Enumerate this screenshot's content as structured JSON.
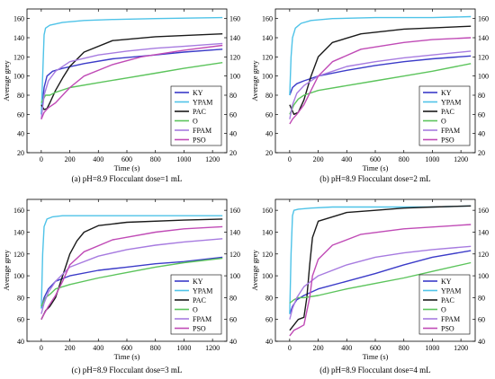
{
  "legend_labels": [
    "KY",
    "YPAM",
    "PAC",
    "O",
    "FPAM",
    "PSO"
  ],
  "colors": {
    "KY": "#3b3bc8",
    "YPAM": "#4fc3e8",
    "PAC": "#1a1a1a",
    "O": "#5cc45c",
    "FPAM": "#a77be0",
    "PSO": "#c04bb6",
    "PSO_early": "#e05a2a"
  },
  "chart_data": [
    {
      "type": "line",
      "caption": "(a) pH=8.9  Flocculant dose=1 mL",
      "xlabel": "Time (s)",
      "ylabel": "Average grey",
      "xlim": [
        -100,
        1300
      ],
      "ylim": [
        20,
        170
      ],
      "xticks": [
        0,
        200,
        400,
        600,
        800,
        1000,
        1200
      ],
      "yticks": [
        20,
        40,
        60,
        80,
        100,
        120,
        140,
        160
      ],
      "legend_position": "lower-right",
      "series": [
        {
          "name": "KY",
          "x": [
            0,
            20,
            40,
            80,
            150,
            300,
            500,
            800,
            1000,
            1270
          ],
          "y": [
            60,
            88,
            100,
            105,
            108,
            113,
            118,
            122,
            125,
            128
          ]
        },
        {
          "name": "YPAM",
          "x": [
            0,
            10,
            20,
            30,
            60,
            150,
            300,
            500,
            800,
            1270
          ],
          "y": [
            60,
            100,
            143,
            150,
            153,
            156,
            158,
            159,
            160,
            161
          ]
        },
        {
          "name": "PAC",
          "x": [
            0,
            20,
            40,
            60,
            100,
            150,
            200,
            300,
            500,
            800,
            1270
          ],
          "y": [
            70,
            65,
            66,
            72,
            85,
            98,
            110,
            125,
            137,
            141,
            144
          ]
        },
        {
          "name": "O",
          "x": [
            0,
            30,
            60,
            100,
            200,
            400,
            600,
            800,
            1000,
            1270
          ],
          "y": [
            72,
            80,
            80,
            83,
            88,
            93,
            98,
            103,
            108,
            114
          ]
        },
        {
          "name": "FPAM",
          "x": [
            0,
            20,
            50,
            100,
            200,
            400,
            600,
            800,
            1000,
            1270
          ],
          "y": [
            55,
            80,
            95,
            105,
            115,
            122,
            126,
            129,
            131,
            134
          ]
        },
        {
          "name": "PSO",
          "x": [
            0,
            20,
            50,
            100,
            150,
            200,
            300,
            500,
            700,
            1000,
            1270
          ],
          "y": [
            55,
            62,
            67,
            72,
            80,
            88,
            100,
            112,
            120,
            127,
            132
          ]
        }
      ]
    },
    {
      "type": "line",
      "caption": "(b) pH=8.9  Flocculant dose=2 mL",
      "xlabel": "Time (s)",
      "ylabel": "Average grey",
      "xlim": [
        -100,
        1300
      ],
      "ylim": [
        20,
        170
      ],
      "xticks": [
        0,
        200,
        400,
        600,
        800,
        1000,
        1200
      ],
      "yticks": [
        20,
        40,
        60,
        80,
        100,
        120,
        140,
        160
      ],
      "legend_position": "lower-right",
      "series": [
        {
          "name": "KY",
          "x": [
            0,
            20,
            50,
            100,
            200,
            400,
            600,
            800,
            1000,
            1270
          ],
          "y": [
            80,
            88,
            92,
            95,
            100,
            106,
            111,
            115,
            118,
            121
          ]
        },
        {
          "name": "YPAM",
          "x": [
            0,
            10,
            20,
            40,
            80,
            150,
            300,
            600,
            1000,
            1270
          ],
          "y": [
            80,
            120,
            140,
            150,
            155,
            158,
            160,
            161,
            161,
            162
          ]
        },
        {
          "name": "PAC",
          "x": [
            0,
            30,
            60,
            100,
            150,
            200,
            300,
            500,
            800,
            1270
          ],
          "y": [
            70,
            60,
            62,
            75,
            100,
            120,
            135,
            144,
            149,
            152
          ]
        },
        {
          "name": "O",
          "x": [
            0,
            30,
            60,
            100,
            200,
            400,
            600,
            800,
            1000,
            1270
          ],
          "y": [
            60,
            70,
            76,
            80,
            85,
            90,
            95,
            100,
            105,
            113
          ]
        },
        {
          "name": "FPAM",
          "x": [
            0,
            20,
            50,
            100,
            200,
            400,
            600,
            800,
            1000,
            1270
          ],
          "y": [
            55,
            70,
            82,
            90,
            100,
            110,
            115,
            119,
            122,
            126
          ]
        },
        {
          "name": "PSO",
          "x": [
            0,
            20,
            50,
            100,
            150,
            200,
            300,
            500,
            800,
            1000,
            1270
          ],
          "y": [
            50,
            55,
            60,
            70,
            85,
            100,
            115,
            128,
            135,
            138,
            140
          ]
        }
      ]
    },
    {
      "type": "line",
      "caption": "(c) pH=8.9  Flocculant dose=3 mL",
      "xlabel": "Time (s)",
      "ylabel": "Average grey",
      "xlim": [
        -100,
        1300
      ],
      "ylim": [
        40,
        170
      ],
      "xticks": [
        0,
        200,
        400,
        600,
        800,
        1000,
        1200
      ],
      "yticks": [
        40,
        60,
        80,
        100,
        120,
        140,
        160
      ],
      "legend_position": "lower-right",
      "series": [
        {
          "name": "KY",
          "x": [
            0,
            20,
            50,
            100,
            200,
            400,
            600,
            800,
            1000,
            1270
          ],
          "y": [
            70,
            80,
            88,
            95,
            100,
            105,
            108,
            111,
            113,
            117
          ]
        },
        {
          "name": "YPAM",
          "x": [
            0,
            10,
            20,
            40,
            80,
            150,
            300,
            600,
            1000,
            1270
          ],
          "y": [
            70,
            120,
            145,
            152,
            154,
            155,
            155,
            155,
            155,
            155
          ]
        },
        {
          "name": "PAC",
          "x": [
            0,
            30,
            60,
            100,
            150,
            200,
            250,
            300,
            400,
            600,
            1000,
            1270
          ],
          "y": [
            60,
            68,
            72,
            80,
            100,
            120,
            132,
            140,
            146,
            149,
            151,
            152
          ]
        },
        {
          "name": "O",
          "x": [
            0,
            30,
            60,
            100,
            200,
            400,
            600,
            800,
            1000,
            1270
          ],
          "y": [
            72,
            80,
            83,
            88,
            92,
            98,
            103,
            108,
            112,
            116
          ]
        },
        {
          "name": "FPAM",
          "x": [
            0,
            20,
            50,
            100,
            200,
            400,
            600,
            800,
            1000,
            1270
          ],
          "y": [
            65,
            75,
            85,
            95,
            108,
            118,
            124,
            128,
            131,
            134
          ]
        },
        {
          "name": "PSO",
          "x": [
            0,
            20,
            50,
            100,
            150,
            200,
            300,
            500,
            800,
            1000,
            1270
          ],
          "y": [
            60,
            65,
            72,
            82,
            95,
            110,
            122,
            133,
            140,
            143,
            145
          ]
        }
      ]
    },
    {
      "type": "line",
      "caption": "(d) pH=8.9  Flocculant dose=4 mL",
      "xlabel": "Time (s)",
      "ylabel": "Average grey",
      "xlim": [
        -100,
        1300
      ],
      "ylim": [
        40,
        170
      ],
      "xticks": [
        0,
        200,
        400,
        600,
        800,
        1000,
        1200
      ],
      "yticks": [
        40,
        60,
        80,
        100,
        120,
        140,
        160
      ],
      "legend_position": "lower-right",
      "series": [
        {
          "name": "KY",
          "x": [
            0,
            20,
            50,
            100,
            200,
            400,
            600,
            800,
            1000,
            1270
          ],
          "y": [
            65,
            72,
            78,
            82,
            88,
            95,
            102,
            110,
            117,
            123
          ]
        },
        {
          "name": "YPAM",
          "x": [
            0,
            10,
            20,
            30,
            60,
            150,
            300,
            600,
            1000,
            1270
          ],
          "y": [
            65,
            120,
            155,
            160,
            161,
            162,
            163,
            163,
            163,
            164
          ]
        },
        {
          "name": "PAC",
          "x": [
            0,
            30,
            60,
            100,
            120,
            140,
            160,
            200,
            400,
            600,
            800,
            1000,
            1270
          ],
          "y": [
            50,
            55,
            60,
            62,
            80,
            110,
            135,
            150,
            158,
            160,
            162,
            163,
            164
          ]
        },
        {
          "name": "O",
          "x": [
            0,
            30,
            60,
            100,
            200,
            400,
            600,
            800,
            1000,
            1270
          ],
          "y": [
            75,
            78,
            80,
            80,
            82,
            88,
            93,
            98,
            104,
            112
          ]
        },
        {
          "name": "FPAM",
          "x": [
            0,
            20,
            50,
            100,
            200,
            400,
            600,
            800,
            1000,
            1270
          ],
          "y": [
            60,
            70,
            80,
            90,
            100,
            110,
            117,
            121,
            124,
            127
          ]
        },
        {
          "name": "PSO",
          "x": [
            0,
            30,
            60,
            100,
            140,
            160,
            200,
            300,
            500,
            800,
            1270
          ],
          "y": [
            45,
            50,
            52,
            55,
            80,
            100,
            115,
            128,
            138,
            143,
            147
          ]
        }
      ]
    }
  ]
}
